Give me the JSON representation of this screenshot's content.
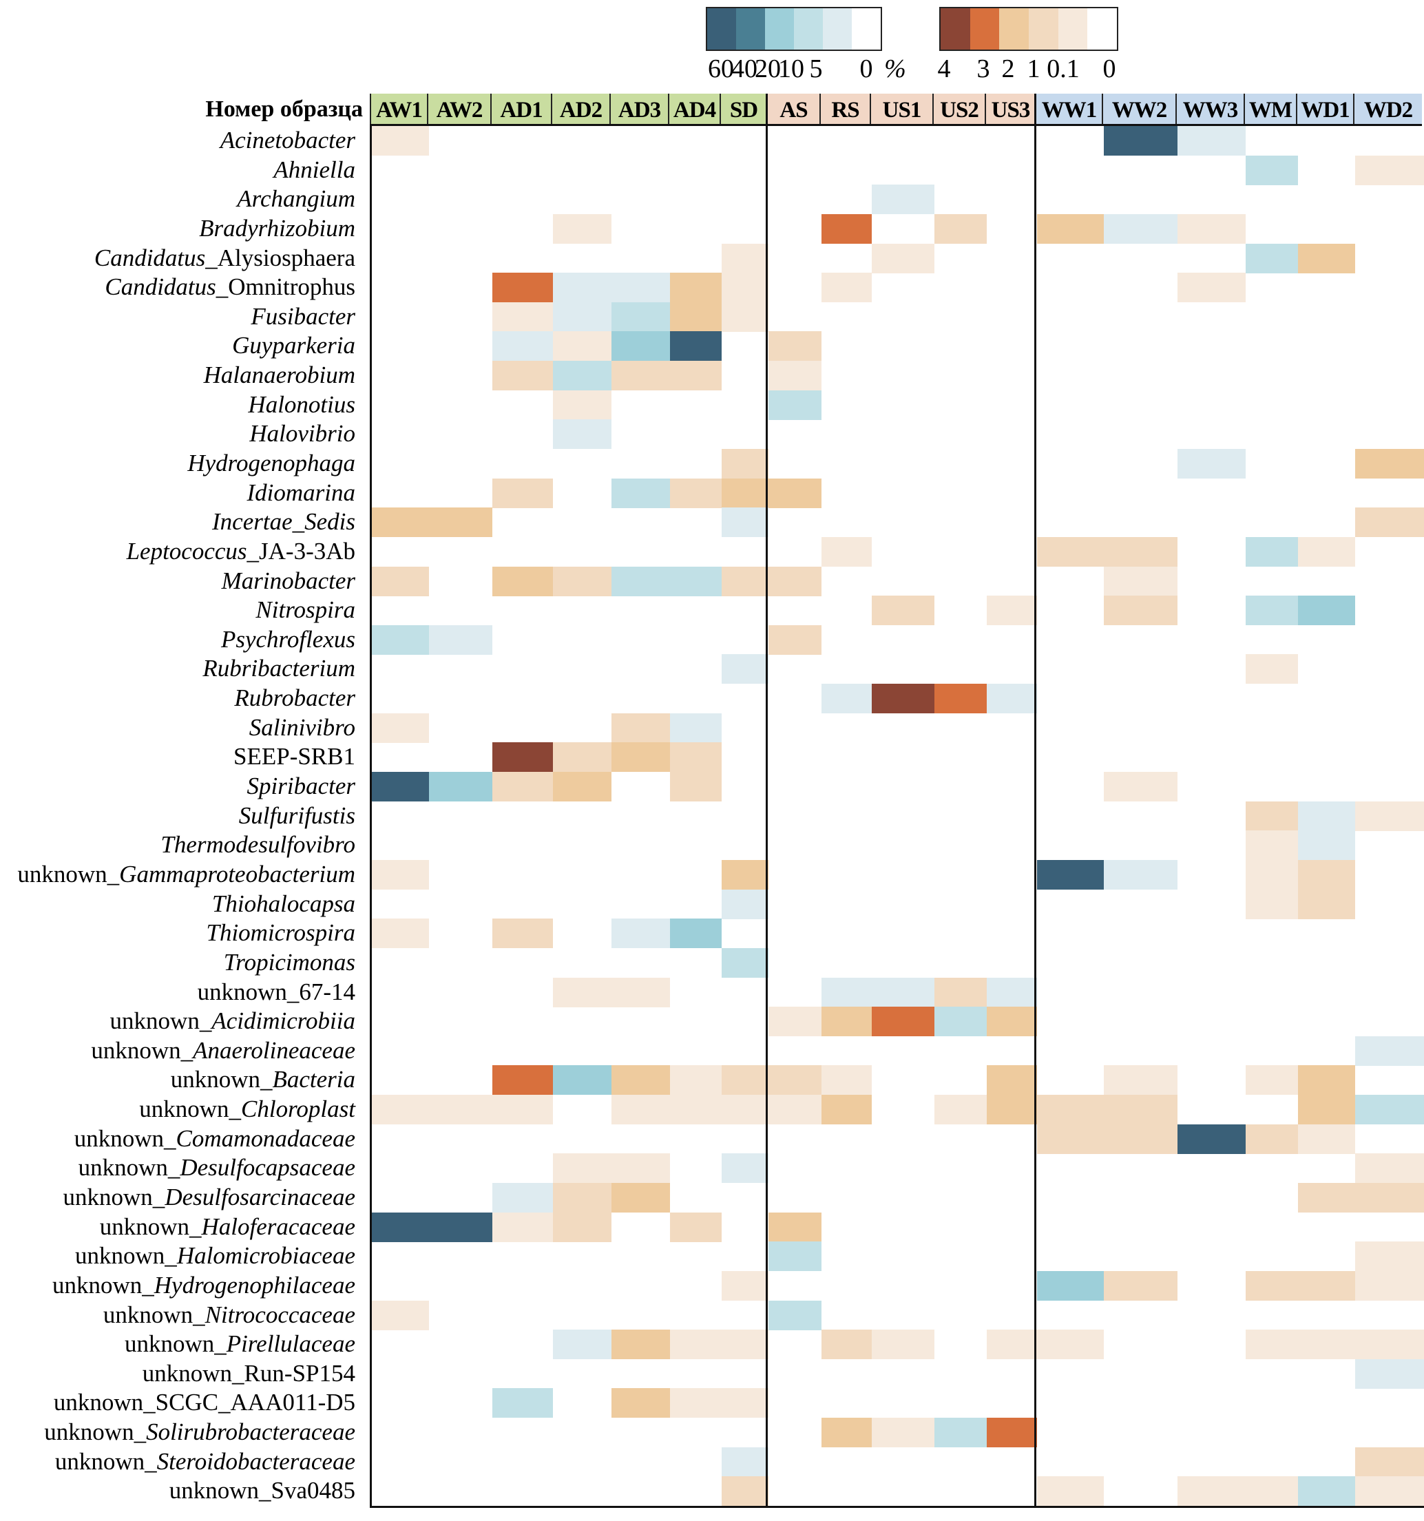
{
  "chart_data": {
    "type": "heatmap",
    "title": "",
    "row_axis_title": "Номер образца",
    "legend": {
      "blue_scale": {
        "unit": "%",
        "ticks": [
          "60",
          "40",
          "20",
          "10",
          "5",
          "0"
        ],
        "levels": [
          {
            "code": "b60",
            "value": 60,
            "color": "#3a6078"
          },
          {
            "code": "b40",
            "value": 40,
            "color": "#4a7f93"
          },
          {
            "code": "b20",
            "value": 20,
            "color": "#9dcfd9"
          },
          {
            "code": "b10",
            "value": 10,
            "color": "#c1e0e6"
          },
          {
            "code": "b5",
            "value": 5,
            "color": "#deebf0"
          },
          {
            "code": "",
            "value": 0,
            "color": "#ffffff"
          }
        ]
      },
      "orange_scale": {
        "ticks": [
          "4",
          "3",
          "2",
          "1",
          "0.1",
          "0"
        ],
        "levels": [
          {
            "code": "o4",
            "value": 4,
            "color": "#8b4535"
          },
          {
            "code": "o3",
            "value": 3,
            "color": "#d8703d"
          },
          {
            "code": "o2",
            "value": 2,
            "color": "#eecb9e"
          },
          {
            "code": "o1",
            "value": 1,
            "color": "#f2dac0"
          },
          {
            "code": "o01",
            "value": 0.1,
            "color": "#f6e9dc"
          },
          {
            "code": "",
            "value": 0,
            "color": "#ffffff"
          }
        ]
      },
      "percent_symbol": "%"
    },
    "column_groups": [
      {
        "color": "#c9dda0",
        "columns": [
          "AW1",
          "AW2",
          "AD1",
          "AD2",
          "AD3",
          "AD4",
          "SD"
        ]
      },
      {
        "color": "#f2d7c6",
        "columns": [
          "AS",
          "RS",
          "US1",
          "US2",
          "US3"
        ]
      },
      {
        "color": "#c6d9ed",
        "columns": [
          "WW1",
          "WW2",
          "WW3",
          "WM",
          "WD1",
          "WD2"
        ]
      }
    ],
    "columns": [
      "AW1",
      "AW2",
      "AD1",
      "AD2",
      "AD3",
      "AD4",
      "SD",
      "AS",
      "RS",
      "US1",
      "US2",
      "US3",
      "WW1",
      "WW2",
      "WW3",
      "WM",
      "WD1",
      "WD2"
    ],
    "rows": [
      {
        "prefix": "",
        "italic": "Acinetobacter",
        "suffix": ""
      },
      {
        "prefix": "",
        "italic": "Ahniella",
        "suffix": ""
      },
      {
        "prefix": "",
        "italic": "Archangium",
        "suffix": ""
      },
      {
        "prefix": "",
        "italic": "Bradyrhizobium",
        "suffix": ""
      },
      {
        "prefix": "",
        "italic": "Candidatus",
        "suffix": "_Alysiosphaera"
      },
      {
        "prefix": "",
        "italic": "Candidatus",
        "suffix": "_Omnitrophus"
      },
      {
        "prefix": "",
        "italic": "Fusibacter",
        "suffix": ""
      },
      {
        "prefix": "",
        "italic": "Guyparkeria",
        "suffix": ""
      },
      {
        "prefix": "",
        "italic": "Halanaerobium",
        "suffix": ""
      },
      {
        "prefix": "",
        "italic": "Halonotius",
        "suffix": ""
      },
      {
        "prefix": "",
        "italic": "Halovibrio",
        "suffix": ""
      },
      {
        "prefix": "",
        "italic": "Hydrogenophaga",
        "suffix": ""
      },
      {
        "prefix": "",
        "italic": "Idiomarina",
        "suffix": ""
      },
      {
        "prefix": "",
        "italic": "Incertae_Sedis",
        "suffix": ""
      },
      {
        "prefix": "",
        "italic": "Leptococcus",
        "suffix": "_JA-3-3Ab"
      },
      {
        "prefix": "",
        "italic": "Marinobacter",
        "suffix": ""
      },
      {
        "prefix": "",
        "italic": "Nitrospira",
        "suffix": ""
      },
      {
        "prefix": "",
        "italic": "Psychroflexus",
        "suffix": ""
      },
      {
        "prefix": "",
        "italic": "Rubribacterium",
        "suffix": ""
      },
      {
        "prefix": "",
        "italic": "Rubrobacter",
        "suffix": ""
      },
      {
        "prefix": "",
        "italic": "Salinivibro",
        "suffix": ""
      },
      {
        "prefix": "SEEP-SRB1",
        "italic": "",
        "suffix": ""
      },
      {
        "prefix": "",
        "italic": "Spiribacter",
        "suffix": ""
      },
      {
        "prefix": "",
        "italic": "Sulfurifustis",
        "suffix": ""
      },
      {
        "prefix": "",
        "italic": "Thermodesulfovibro",
        "suffix": ""
      },
      {
        "prefix": "unknown_",
        "italic": "Gammaproteobacterium",
        "suffix": ""
      },
      {
        "prefix": "",
        "italic": "Thiohalocapsa",
        "suffix": ""
      },
      {
        "prefix": "",
        "italic": "Thiomicrospira",
        "suffix": ""
      },
      {
        "prefix": "",
        "italic": "Tropicimonas",
        "suffix": ""
      },
      {
        "prefix": "unknown_67-14",
        "italic": "",
        "suffix": ""
      },
      {
        "prefix": "unknown_",
        "italic": "Acidimicrobiia",
        "suffix": ""
      },
      {
        "prefix": "unknown_",
        "italic": "Anaerolineaceae",
        "suffix": ""
      },
      {
        "prefix": "unknown_",
        "italic": "Bacteria",
        "suffix": ""
      },
      {
        "prefix": "unknown_",
        "italic": "Chloroplast",
        "suffix": ""
      },
      {
        "prefix": "unknown_",
        "italic": "Comamonadaceae",
        "suffix": ""
      },
      {
        "prefix": "unknown_",
        "italic": "Desulfocapsaceae",
        "suffix": ""
      },
      {
        "prefix": "unknown_",
        "italic": "Desulfosarcinaceae",
        "suffix": ""
      },
      {
        "prefix": "unknown_",
        "italic": "Haloferacaceae",
        "suffix": ""
      },
      {
        "prefix": "unknown_",
        "italic": "Halomicrobiaceae",
        "suffix": ""
      },
      {
        "prefix": "unknown_",
        "italic": "Hydrogenophilaceae",
        "suffix": ""
      },
      {
        "prefix": "unknown_",
        "italic": "Nitrococcaceae",
        "suffix": ""
      },
      {
        "prefix": "unknown_",
        "italic": "Pirellulaceae",
        "suffix": ""
      },
      {
        "prefix": "unknown_Run-SP154",
        "italic": "",
        "suffix": ""
      },
      {
        "prefix": "unknown_SCGC_AAA011-D5",
        "italic": "",
        "suffix": ""
      },
      {
        "prefix": "unknown_",
        "italic": "Solirubrobacteraceae",
        "suffix": ""
      },
      {
        "prefix": "unknown_",
        "italic": "Steroidobacteraceae",
        "suffix": ""
      },
      {
        "prefix": "unknown_Sva0485",
        "italic": "",
        "suffix": ""
      }
    ],
    "values": [
      [
        "o01",
        "",
        "",
        "",
        "",
        "",
        "",
        "",
        "",
        "",
        "",
        "",
        "",
        "b60",
        "b5",
        "",
        "",
        ""
      ],
      [
        "",
        "",
        "",
        "",
        "",
        "",
        "",
        "",
        "",
        "",
        "",
        "",
        "",
        "",
        "",
        "b10",
        "",
        "o01"
      ],
      [
        "",
        "",
        "",
        "",
        "",
        "",
        "",
        "",
        "",
        "b5",
        "",
        "",
        "",
        "",
        "",
        "",
        "",
        ""
      ],
      [
        "",
        "",
        "",
        "o01",
        "",
        "",
        "",
        "",
        "o3",
        "",
        "o1",
        "",
        "o2",
        "b5",
        "o01",
        "",
        "",
        ""
      ],
      [
        "",
        "",
        "",
        "",
        "",
        "",
        "o01",
        "",
        "",
        "o01",
        "",
        "",
        "",
        "",
        "",
        "b10",
        "o2",
        ""
      ],
      [
        "",
        "",
        "o3",
        "b5",
        "b5",
        "o2",
        "o01",
        "",
        "o01",
        "",
        "",
        "",
        "",
        "",
        "o01",
        "",
        "",
        ""
      ],
      [
        "",
        "",
        "o01",
        "b5",
        "b10",
        "o2",
        "o01",
        "",
        "",
        "",
        "",
        "",
        "",
        "",
        "",
        "",
        "",
        ""
      ],
      [
        "",
        "",
        "b5",
        "o01",
        "b20",
        "b60",
        "",
        "o1",
        "",
        "",
        "",
        "",
        "",
        "",
        "",
        "",
        "",
        ""
      ],
      [
        "",
        "",
        "o1",
        "b10",
        "o1",
        "o1",
        "",
        "o01",
        "",
        "",
        "",
        "",
        "",
        "",
        "",
        "",
        "",
        ""
      ],
      [
        "",
        "",
        "",
        "o01",
        "",
        "",
        "",
        "b10",
        "",
        "",
        "",
        "",
        "",
        "",
        "",
        "",
        "",
        ""
      ],
      [
        "",
        "",
        "",
        "b5",
        "",
        "",
        "",
        "",
        "",
        "",
        "",
        "",
        "",
        "",
        "",
        "",
        "",
        ""
      ],
      [
        "",
        "",
        "",
        "",
        "",
        "",
        "o1",
        "",
        "",
        "",
        "",
        "",
        "",
        "",
        "b5",
        "",
        "",
        "o2"
      ],
      [
        "",
        "",
        "o1",
        "",
        "b10",
        "o1",
        "o2",
        "o2",
        "",
        "",
        "",
        "",
        "",
        "",
        "",
        "",
        "",
        ""
      ],
      [
        "o2",
        "o2",
        "",
        "",
        "",
        "",
        "b5",
        "",
        "",
        "",
        "",
        "",
        "",
        "",
        "",
        "",
        "",
        "o1"
      ],
      [
        "",
        "",
        "",
        "",
        "",
        "",
        "",
        "",
        "o01",
        "",
        "",
        "",
        "o1",
        "o1",
        "",
        "b10",
        "o01",
        ""
      ],
      [
        "o1",
        "",
        "o2",
        "o1",
        "b10",
        "b10",
        "o1",
        "o1",
        "",
        "",
        "",
        "",
        "",
        "o01",
        "",
        "",
        "",
        ""
      ],
      [
        "",
        "",
        "",
        "",
        "",
        "",
        "",
        "",
        "",
        "o1",
        "",
        "o01",
        "",
        "o1",
        "",
        "b10",
        "b20",
        ""
      ],
      [
        "b10",
        "b5",
        "",
        "",
        "",
        "",
        "",
        "o1",
        "",
        "",
        "",
        "",
        "",
        "",
        "",
        "",
        "",
        ""
      ],
      [
        "",
        "",
        "",
        "",
        "",
        "",
        "b5",
        "",
        "",
        "",
        "",
        "",
        "",
        "",
        "",
        "o01",
        "",
        ""
      ],
      [
        "",
        "",
        "",
        "",
        "",
        "",
        "",
        "",
        "b5",
        "o4",
        "o3",
        "b5",
        "",
        "",
        "",
        "",
        "",
        ""
      ],
      [
        "o01",
        "",
        "",
        "",
        "o1",
        "b5",
        "",
        "",
        "",
        "",
        "",
        "",
        "",
        "",
        "",
        "",
        "",
        ""
      ],
      [
        "",
        "",
        "o4",
        "o1",
        "o2",
        "o1",
        "",
        "",
        "",
        "",
        "",
        "",
        "",
        "",
        "",
        "",
        "",
        ""
      ],
      [
        "b60",
        "b20",
        "o1",
        "o2",
        "",
        "o1",
        "",
        "",
        "",
        "",
        "",
        "",
        "",
        "o01",
        "",
        "",
        "",
        ""
      ],
      [
        "",
        "",
        "",
        "",
        "",
        "",
        "",
        "",
        "",
        "",
        "",
        "",
        "",
        "",
        "",
        "o1",
        "b5",
        "o01"
      ],
      [
        "",
        "",
        "",
        "",
        "",
        "",
        "",
        "",
        "",
        "",
        "",
        "",
        "",
        "",
        "",
        "o01",
        "b5",
        ""
      ],
      [
        "o01",
        "",
        "",
        "",
        "",
        "",
        "o2",
        "",
        "",
        "",
        "",
        "",
        "b60",
        "b5",
        "",
        "o01",
        "o1",
        ""
      ],
      [
        "",
        "",
        "",
        "",
        "",
        "",
        "b5",
        "",
        "",
        "",
        "",
        "",
        "",
        "",
        "",
        "o01",
        "o1",
        ""
      ],
      [
        "o01",
        "",
        "o1",
        "",
        "b5",
        "b20",
        "",
        "",
        "",
        "",
        "",
        "",
        "",
        "",
        "",
        "",
        "",
        ""
      ],
      [
        "",
        "",
        "",
        "",
        "",
        "",
        "b10",
        "",
        "",
        "",
        "",
        "",
        "",
        "",
        "",
        "",
        "",
        ""
      ],
      [
        "",
        "",
        "",
        "o01",
        "o01",
        "",
        "",
        "",
        "b5",
        "b5",
        "o1",
        "b5",
        "",
        "",
        "",
        "",
        "",
        ""
      ],
      [
        "",
        "",
        "",
        "",
        "",
        "",
        "",
        "o01",
        "o2",
        "o3",
        "b10",
        "o2",
        "",
        "",
        "",
        "",
        "",
        ""
      ],
      [
        "",
        "",
        "",
        "",
        "",
        "",
        "",
        "",
        "",
        "",
        "",
        "",
        "",
        "",
        "",
        "",
        "",
        "b5"
      ],
      [
        "",
        "",
        "o3",
        "b20",
        "o2",
        "o01",
        "o1",
        "o1",
        "o01",
        "",
        "",
        "o2",
        "",
        "o01",
        "",
        "o01",
        "o2",
        ""
      ],
      [
        "o01",
        "o01",
        "o01",
        "",
        "o01",
        "o01",
        "o01",
        "o01",
        "o2",
        "",
        "o01",
        "o2",
        "o1",
        "o1",
        "",
        "",
        "o2",
        "b10"
      ],
      [
        "",
        "",
        "",
        "",
        "",
        "",
        "",
        "",
        "",
        "",
        "",
        "",
        "o1",
        "o1",
        "b60",
        "o1",
        "o01",
        ""
      ],
      [
        "",
        "",
        "",
        "o01",
        "o01",
        "",
        "b5",
        "",
        "",
        "",
        "",
        "",
        "",
        "",
        "",
        "",
        "",
        "o01"
      ],
      [
        "",
        "",
        "b5",
        "o1",
        "o2",
        "",
        "",
        "",
        "",
        "",
        "",
        "",
        "",
        "",
        "",
        "",
        "o1",
        "o1"
      ],
      [
        "b60",
        "b60",
        "o01",
        "o1",
        "",
        "o1",
        "",
        "o2",
        "",
        "",
        "",
        "",
        "",
        "",
        "",
        "",
        "",
        ""
      ],
      [
        "",
        "",
        "",
        "",
        "",
        "",
        "",
        "b10",
        "",
        "",
        "",
        "",
        "",
        "",
        "",
        "",
        "",
        "o01"
      ],
      [
        "",
        "",
        "",
        "",
        "",
        "",
        "o01",
        "",
        "",
        "",
        "",
        "",
        "b20",
        "o1",
        "",
        "o1",
        "o1",
        "o01"
      ],
      [
        "o01",
        "",
        "",
        "",
        "",
        "",
        "",
        "b10",
        "",
        "",
        "",
        "",
        "",
        "",
        "",
        "",
        "",
        ""
      ],
      [
        "",
        "",
        "",
        "b5",
        "o2",
        "o01",
        "o01",
        "",
        "o1",
        "o01",
        "",
        "o01",
        "o01",
        "",
        "",
        "o01",
        "o01",
        "o01"
      ],
      [
        "",
        "",
        "",
        "",
        "",
        "",
        "",
        "",
        "",
        "",
        "",
        "",
        "",
        "",
        "",
        "",
        "",
        "b5"
      ],
      [
        "",
        "",
        "b10",
        "",
        "o2",
        "o01",
        "o01",
        "",
        "",
        "",
        "",
        "",
        "",
        "",
        "",
        "",
        "",
        ""
      ],
      [
        "",
        "",
        "",
        "",
        "",
        "",
        "",
        "",
        "o2",
        "o01",
        "b10",
        "o3",
        "",
        "",
        "",
        "",
        "",
        ""
      ],
      [
        "",
        "",
        "",
        "",
        "",
        "",
        "b5",
        "",
        "",
        "",
        "",
        "",
        "",
        "",
        "",
        "",
        "",
        "o1"
      ],
      [
        "",
        "",
        "",
        "",
        "",
        "",
        "o1",
        "",
        "",
        "",
        "",
        "",
        "o01",
        "",
        "o01",
        "o01",
        "b10",
        "o01"
      ]
    ],
    "xlabel": "",
    "ylabel": "",
    "grid": false
  }
}
